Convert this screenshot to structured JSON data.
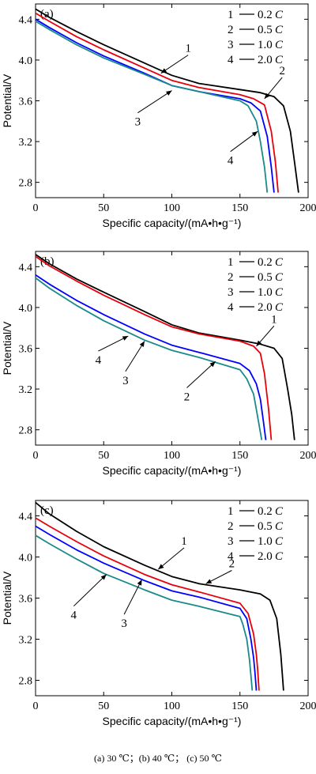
{
  "caption": "(a)  30  ℃；(b)  40  ℃；  (c) 50  ℃",
  "chart_data": [
    {
      "type": "line",
      "panel_label": "(a)",
      "xlabel": "Specific capacity/(mA•h•g⁻¹)",
      "ylabel": "Potential/V",
      "xlim": [
        0,
        200
      ],
      "ylim": [
        2.65,
        4.55
      ],
      "xticks": [
        0,
        50,
        100,
        150,
        200
      ],
      "yticks": [
        2.8,
        3.2,
        3.6,
        4.0,
        4.4
      ],
      "grid": false,
      "legend_position": "top-right",
      "legend": [
        {
          "num": "1",
          "rate": "0.2",
          "unit": "C"
        },
        {
          "num": "2",
          "rate": "0.5",
          "unit": "C"
        },
        {
          "num": "3",
          "rate": "1.0",
          "unit": "C"
        },
        {
          "num": "4",
          "rate": "2.0",
          "unit": "C"
        }
      ],
      "series": [
        {
          "color": "#000000",
          "x": [
            0,
            10,
            30,
            50,
            80,
            100,
            120,
            150,
            165,
            175,
            182,
            187,
            190,
            193
          ],
          "y": [
            4.5,
            4.42,
            4.28,
            4.15,
            3.97,
            3.85,
            3.77,
            3.71,
            3.68,
            3.64,
            3.55,
            3.3,
            3.0,
            2.7
          ]
        },
        {
          "color": "#e8000b",
          "x": [
            0,
            10,
            30,
            50,
            80,
            100,
            120,
            150,
            160,
            168,
            173,
            176,
            178
          ],
          "y": [
            4.46,
            4.38,
            4.23,
            4.1,
            3.92,
            3.8,
            3.73,
            3.66,
            3.62,
            3.56,
            3.3,
            3.0,
            2.7
          ]
        },
        {
          "color": "#0000ff",
          "x": [
            0,
            10,
            30,
            50,
            80,
            100,
            120,
            150,
            158,
            165,
            170,
            173,
            175
          ],
          "y": [
            4.4,
            4.32,
            4.17,
            4.04,
            3.87,
            3.75,
            3.69,
            3.62,
            3.58,
            3.5,
            3.25,
            2.95,
            2.7
          ]
        },
        {
          "color": "#1a8a8a",
          "x": [
            0,
            10,
            30,
            50,
            80,
            100,
            120,
            150,
            156,
            162,
            165,
            168,
            170
          ],
          "y": [
            4.38,
            4.3,
            4.15,
            4.02,
            3.86,
            3.75,
            3.69,
            3.6,
            3.55,
            3.4,
            3.2,
            2.95,
            2.7
          ]
        }
      ],
      "annotations": [
        {
          "text": "1",
          "x": 112,
          "y": 4.08,
          "ax": 92,
          "ay": 3.87
        },
        {
          "text": "2",
          "x": 181,
          "y": 3.86,
          "ax": 168,
          "ay": 3.62
        },
        {
          "text": "3",
          "x": 75,
          "y": 3.42,
          "ax": 100,
          "ay": 3.7
        },
        {
          "text": "4",
          "x": 143,
          "y": 3.04,
          "ax": 163,
          "ay": 3.3
        }
      ]
    },
    {
      "type": "line",
      "panel_label": "(b)",
      "xlabel": "Specific capacity/(mA•h•g⁻¹)",
      "ylabel": "Potential/V",
      "xlim": [
        0,
        200
      ],
      "ylim": [
        2.65,
        4.55
      ],
      "xticks": [
        0,
        50,
        100,
        150,
        200
      ],
      "yticks": [
        2.8,
        3.2,
        3.6,
        4.0,
        4.4
      ],
      "grid": false,
      "legend_position": "top-right",
      "legend": [
        {
          "num": "1",
          "rate": "0.2",
          "unit": "C"
        },
        {
          "num": "2",
          "rate": "0.5",
          "unit": "C"
        },
        {
          "num": "3",
          "rate": "1.0",
          "unit": "C"
        },
        {
          "num": "4",
          "rate": "2.0",
          "unit": "C"
        }
      ],
      "series": [
        {
          "color": "#000000",
          "x": [
            0,
            10,
            30,
            50,
            80,
            100,
            120,
            150,
            165,
            175,
            181,
            185,
            188,
            190
          ],
          "y": [
            4.52,
            4.43,
            4.28,
            4.15,
            3.96,
            3.83,
            3.75,
            3.68,
            3.64,
            3.6,
            3.5,
            3.2,
            2.95,
            2.7
          ]
        },
        {
          "color": "#e8000b",
          "x": [
            0,
            10,
            30,
            50,
            80,
            100,
            120,
            150,
            160,
            165,
            168,
            171,
            173
          ],
          "y": [
            4.5,
            4.41,
            4.26,
            4.12,
            3.93,
            3.81,
            3.74,
            3.67,
            3.62,
            3.55,
            3.35,
            3.0,
            2.7
          ]
        },
        {
          "color": "#0000ff",
          "x": [
            0,
            10,
            30,
            50,
            80,
            100,
            120,
            150,
            157,
            162,
            165,
            167,
            169
          ],
          "y": [
            4.32,
            4.23,
            4.07,
            3.93,
            3.74,
            3.63,
            3.56,
            3.45,
            3.38,
            3.25,
            3.1,
            2.9,
            2.7
          ]
        },
        {
          "color": "#1a8a8a",
          "x": [
            0,
            10,
            30,
            50,
            80,
            100,
            120,
            150,
            155,
            160,
            162,
            164,
            166
          ],
          "y": [
            4.29,
            4.19,
            4.02,
            3.87,
            3.68,
            3.58,
            3.51,
            3.39,
            3.3,
            3.15,
            3.0,
            2.85,
            2.7
          ]
        }
      ],
      "annotations": [
        {
          "text": "1",
          "x": 175,
          "y": 3.85,
          "ax": 162,
          "ay": 3.62
        },
        {
          "text": "2",
          "x": 111,
          "y": 3.15,
          "ax": 132,
          "ay": 3.47
        },
        {
          "text": "3",
          "x": 66,
          "y": 3.31,
          "ax": 80,
          "ay": 3.67
        },
        {
          "text": "4",
          "x": 46,
          "y": 3.51,
          "ax": 68,
          "ay": 3.72
        }
      ]
    },
    {
      "type": "line",
      "panel_label": "(c)",
      "xlabel": "Specific capacity/(mA•h•g⁻¹)",
      "ylabel": "Potential/V",
      "xlim": [
        0,
        200
      ],
      "ylim": [
        2.65,
        4.55
      ],
      "xticks": [
        0,
        50,
        100,
        150,
        200
      ],
      "yticks": [
        2.8,
        3.2,
        3.6,
        4.0,
        4.4
      ],
      "grid": false,
      "legend_position": "top-right",
      "legend": [
        {
          "num": "1",
          "rate": "0.2",
          "unit": "C"
        },
        {
          "num": "2",
          "rate": "0.5",
          "unit": "C"
        },
        {
          "num": "3",
          "rate": "1.0",
          "unit": "C"
        },
        {
          "num": "4",
          "rate": "2.0",
          "unit": "C"
        }
      ],
      "series": [
        {
          "color": "#000000",
          "x": [
            0,
            10,
            30,
            50,
            80,
            100,
            120,
            150,
            165,
            172,
            177,
            180,
            182
          ],
          "y": [
            4.53,
            4.42,
            4.25,
            4.1,
            3.92,
            3.81,
            3.74,
            3.68,
            3.64,
            3.58,
            3.4,
            3.05,
            2.7
          ]
        },
        {
          "color": "#e8000b",
          "x": [
            0,
            10,
            30,
            50,
            80,
            100,
            120,
            150,
            156,
            160,
            162,
            163,
            164
          ],
          "y": [
            4.38,
            4.3,
            4.15,
            4.01,
            3.83,
            3.73,
            3.66,
            3.55,
            3.45,
            3.25,
            3.05,
            2.9,
            2.7
          ]
        },
        {
          "color": "#0000ff",
          "x": [
            0,
            10,
            30,
            50,
            80,
            100,
            120,
            150,
            155,
            158,
            160,
            161,
            162
          ],
          "y": [
            4.3,
            4.22,
            4.07,
            3.94,
            3.77,
            3.67,
            3.61,
            3.5,
            3.4,
            3.2,
            3.02,
            2.88,
            2.7
          ]
        },
        {
          "color": "#1a8a8a",
          "x": [
            0,
            10,
            30,
            50,
            80,
            100,
            120,
            150,
            152,
            155,
            157,
            158,
            159
          ],
          "y": [
            4.21,
            4.13,
            3.98,
            3.84,
            3.68,
            3.58,
            3.52,
            3.42,
            3.35,
            3.2,
            3.0,
            2.85,
            2.7
          ]
        }
      ],
      "annotations": [
        {
          "text": "1",
          "x": 109,
          "y": 4.12,
          "ax": 90,
          "ay": 3.88
        },
        {
          "text": "2",
          "x": 144,
          "y": 3.9,
          "ax": 125,
          "ay": 3.74
        },
        {
          "text": "3",
          "x": 65,
          "y": 3.38,
          "ax": 78,
          "ay": 3.78
        },
        {
          "text": "4",
          "x": 28,
          "y": 3.46,
          "ax": 52,
          "ay": 3.83
        }
      ]
    }
  ]
}
